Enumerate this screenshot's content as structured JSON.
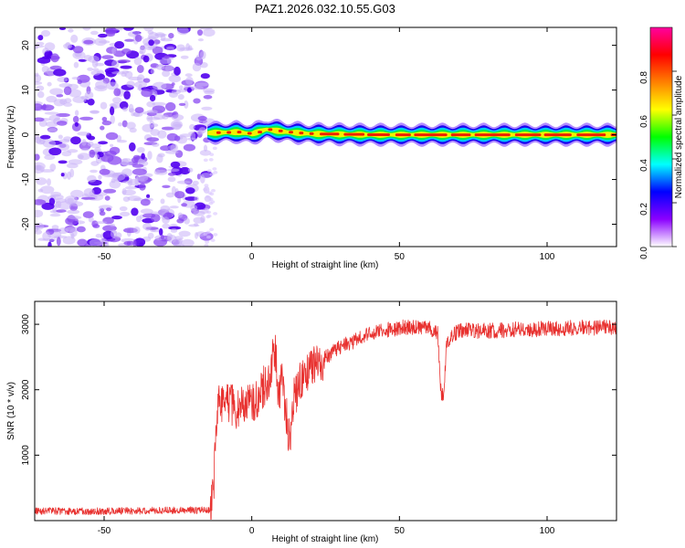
{
  "title": "PAZ1.2026.032.10.55.G03",
  "chart_data": [
    {
      "id": "spectrogram",
      "type": "heatmap",
      "xlabel": "Height of straight line (km)",
      "ylabel": "Frequency (Hz)",
      "xlim": [
        -73.5,
        123.5
      ],
      "ylim": [
        -25,
        24
      ],
      "xticks": [
        -50,
        0,
        50,
        100
      ],
      "yticks": [
        -20,
        -10,
        0,
        10,
        20
      ],
      "xticklabels": [
        "-50",
        "0",
        "50",
        "100"
      ],
      "yticklabels": [
        "-20",
        "-10",
        "0",
        "10",
        "20"
      ],
      "noise_region_x": [
        -73.5,
        -16
      ],
      "signal_onset_x": -15,
      "signal_ridge": [
        {
          "x": -15,
          "f": 0.4,
          "amp": 0.35
        },
        {
          "x": -5,
          "f": 0.6,
          "amp": 0.4
        },
        {
          "x": 0,
          "f": 0.2,
          "amp": 0.35
        },
        {
          "x": 5,
          "f": 1.2,
          "amp": 0.45
        },
        {
          "x": 12,
          "f": 0.6,
          "amp": 0.4
        },
        {
          "x": 20,
          "f": 0.2,
          "amp": 0.6
        },
        {
          "x": 40,
          "f": 0.0,
          "amp": 0.75
        },
        {
          "x": 80,
          "f": 0.0,
          "amp": 0.8
        },
        {
          "x": 123.5,
          "f": 0.0,
          "amp": 0.8
        }
      ],
      "colorbar": {
        "label": "Normalized spectral amplitude",
        "range": [
          0.0,
          1.0
        ],
        "ticks": [
          0.0,
          0.2,
          0.4,
          0.6,
          0.8
        ],
        "ticklabels": [
          "0.0",
          "0.2",
          "0.4",
          "0.6",
          "0.8"
        ],
        "colors": [
          "#ffffff",
          "#8b00ff",
          "#0000ff",
          "#00ffff",
          "#00ff00",
          "#ffff00",
          "#ff8000",
          "#ff0000",
          "#ff00a0"
        ]
      }
    },
    {
      "id": "snr",
      "type": "line",
      "xlabel": "Height of straight line (km)",
      "ylabel": "SNR (10 * v/v)",
      "xlim": [
        -73.5,
        123.5
      ],
      "ylim": [
        0,
        3350
      ],
      "xticks": [
        -50,
        0,
        50,
        100
      ],
      "yticks": [
        1000,
        2000,
        3000
      ],
      "xticklabels": [
        "-50",
        "0",
        "50",
        "100"
      ],
      "yticklabels": [
        "1000",
        "2000",
        "3000"
      ],
      "color": "#e8312f",
      "series": [
        {
          "name": "SNR",
          "x": [
            -73.5,
            -60,
            -40,
            -20,
            -15,
            -14,
            -13,
            -12,
            -11,
            -10,
            -8,
            -5,
            -2,
            0,
            3,
            6,
            8,
            9,
            10,
            12,
            13,
            14,
            16,
            20,
            25,
            30,
            40,
            50,
            55,
            60,
            63,
            64,
            65,
            66,
            70,
            80,
            90,
            100,
            110,
            123.5
          ],
          "y": [
            150,
            140,
            150,
            160,
            160,
            170,
            450,
            1400,
            1900,
            1750,
            1850,
            1700,
            1850,
            1800,
            1950,
            2200,
            2650,
            1850,
            2200,
            1500,
            1150,
            1800,
            2100,
            2300,
            2500,
            2650,
            2850,
            2950,
            2950,
            2950,
            2850,
            2000,
            1850,
            2750,
            2900,
            2900,
            2920,
            2930,
            2950,
            2950
          ]
        }
      ]
    }
  ]
}
